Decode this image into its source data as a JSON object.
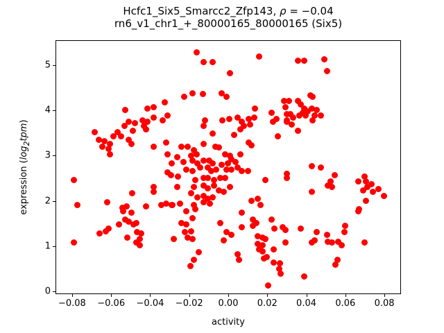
{
  "title": {
    "line1_prefix": "Hcfc1_Six5_Smarcc2_Zfp143, ",
    "line1_rho": "ρ",
    "line1_suffix": " = −0.04",
    "line2": "rn6_v1_chr1_+_80000165_80000165 (Six5)"
  },
  "axes": {
    "xlabel": "activity",
    "ylabel_prefix": "expression (",
    "ylabel_log": "log",
    "ylabel_sub": "2",
    "ylabel_tpm": "tpm",
    "ylabel_suffix": ")"
  },
  "chart_data": {
    "type": "scatter",
    "title": "Hcfc1_Six5_Smarcc2_Zfp143, ρ = −0.04",
    "subtitle": "rn6_v1_chr1_+_80000165_80000165 (Six5)",
    "xlabel": "activity",
    "ylabel": "expression (log2tpm)",
    "correlation_rho": -0.04,
    "legend": "none",
    "grid": false,
    "marker_color": "#ff0000",
    "marker_size_px": 9,
    "xlim": [
      -0.0885,
      0.0885
    ],
    "ylim": [
      -0.06,
      5.55
    ],
    "x_ticks": [
      -0.08,
      -0.06,
      -0.04,
      -0.02,
      0.0,
      0.02,
      0.04,
      0.06,
      0.08
    ],
    "x_tick_labels": [
      "−0.08",
      "−0.06",
      "−0.04",
      "−0.02",
      "0.00",
      "0.02",
      "0.04",
      "0.06",
      "0.08"
    ],
    "y_ticks": [
      0,
      1,
      2,
      3,
      4,
      5
    ],
    "y_tick_labels": [
      "0",
      "1",
      "2",
      "3",
      "4",
      "5"
    ],
    "points": [
      [
        -0.0533,
        4.02
      ],
      [
        -0.0419,
        4.05
      ],
      [
        -0.0384,
        4.09
      ],
      [
        -0.0327,
        4.2
      ],
      [
        -0.0515,
        3.77
      ],
      [
        -0.0483,
        3.74
      ],
      [
        -0.0444,
        3.8
      ],
      [
        -0.0419,
        3.76
      ],
      [
        -0.0387,
        3.85
      ],
      [
        -0.0341,
        3.79
      ],
      [
        -0.0313,
        3.9
      ],
      [
        -0.0167,
        5.29
      ],
      [
        -0.0128,
        5.09
      ],
      [
        -0.0082,
        5.08
      ],
      [
        0.0007,
        4.83
      ],
      [
        0.0156,
        5.2
      ],
      [
        -0.0231,
        4.31
      ],
      [
        -0.0185,
        4.4
      ],
      [
        -0.0135,
        4.37
      ],
      [
        -0.0036,
        4.39
      ],
      [
        -0.0011,
        4.31
      ],
      [
        0.0135,
        4.05
      ],
      [
        0.0281,
        4.23
      ],
      [
        0.0306,
        4.22
      ],
      [
        0.0298,
        3.93
      ],
      [
        0.0217,
        3.96
      ],
      [
        -0.0124,
        3.79
      ],
      [
        -0.0032,
        3.79
      ],
      [
        0.0,
        3.82
      ],
      [
        0.0046,
        3.85
      ],
      [
        0.0067,
        3.77
      ],
      [
        0.0103,
        3.82
      ],
      [
        0.0128,
        3.85
      ],
      [
        0.011,
        3.71
      ],
      [
        0.0224,
        3.77
      ],
      [
        0.0242,
        3.82
      ],
      [
        0.0298,
        3.79
      ],
      [
        0.0352,
        5.12
      ],
      [
        0.0384,
        5.11
      ],
      [
        0.049,
        5.15
      ],
      [
        0.0504,
        4.88
      ],
      [
        0.0288,
        4.09
      ],
      [
        0.0352,
        4.23
      ],
      [
        0.0369,
        4.14
      ],
      [
        0.0416,
        4.34
      ],
      [
        0.043,
        4.31
      ],
      [
        0.0387,
        4.05
      ],
      [
        0.0377,
        3.96
      ],
      [
        0.0405,
        3.99
      ],
      [
        0.0426,
        4.06
      ],
      [
        0.0448,
        4.02
      ],
      [
        0.0313,
        3.94
      ],
      [
        0.033,
        3.85
      ],
      [
        0.0359,
        3.9
      ],
      [
        0.0394,
        3.9
      ],
      [
        0.044,
        3.9
      ],
      [
        0.0472,
        3.9
      ],
      [
        0.043,
        3.79
      ],
      [
        0.0298,
        3.77
      ],
      [
        0.0323,
        3.71
      ],
      [
        -0.0686,
        3.53
      ],
      [
        -0.0668,
        3.36
      ],
      [
        -0.0639,
        3.33
      ],
      [
        -0.0593,
        3.45
      ],
      [
        -0.0572,
        3.53
      ],
      [
        -0.0554,
        3.45
      ],
      [
        -0.0536,
        3.68
      ],
      [
        -0.0494,
        3.56
      ],
      [
        -0.0512,
        3.36
      ],
      [
        -0.0501,
        3.28
      ],
      [
        -0.0437,
        3.67
      ],
      [
        -0.0423,
        3.6
      ],
      [
        -0.0611,
        3.27
      ],
      [
        -0.0618,
        3.17
      ],
      [
        -0.0611,
        3.05
      ],
      [
        -0.0647,
        3.21
      ],
      [
        -0.0387,
        3.21
      ],
      [
        -0.0323,
        3.3
      ],
      [
        -0.0316,
        3.05
      ],
      [
        -0.0295,
        2.84
      ],
      [
        -0.0313,
        2.64
      ],
      [
        -0.0796,
        2.47
      ],
      [
        -0.0384,
        2.33
      ],
      [
        -0.0384,
        2.22
      ],
      [
        -0.0497,
        2.18
      ],
      [
        -0.0778,
        1.92
      ],
      [
        -0.0625,
        1.98
      ],
      [
        -0.0547,
        1.87
      ],
      [
        -0.0526,
        1.9
      ],
      [
        -0.0423,
        1.9
      ],
      [
        -0.0348,
        1.92
      ],
      [
        -0.0323,
        1.95
      ],
      [
        -0.0295,
        1.92
      ],
      [
        -0.0131,
        3.67
      ],
      [
        -0.0082,
        3.5
      ],
      [
        0.0025,
        3.48
      ],
      [
        0.0057,
        3.6
      ],
      [
        0.0078,
        3.67
      ],
      [
        0.0103,
        3.31
      ],
      [
        0.0114,
        3.24
      ],
      [
        0.0249,
        3.45
      ],
      [
        -0.0245,
        3.21
      ],
      [
        -0.0213,
        3.22
      ],
      [
        -0.0181,
        3.14
      ],
      [
        -0.0131,
        3.27
      ],
      [
        -0.0071,
        3.21
      ],
      [
        -0.005,
        3.19
      ],
      [
        -0.0266,
        2.99
      ],
      [
        -0.0195,
        3.02
      ],
      [
        -0.0167,
        3.05
      ],
      [
        -0.0018,
        3.05
      ],
      [
        0.0004,
        3.02
      ],
      [
        0.0057,
        3.05
      ],
      [
        -0.0234,
        2.88
      ],
      [
        -0.0185,
        2.9
      ],
      [
        -0.016,
        2.85
      ],
      [
        -0.0128,
        2.9
      ],
      [
        -0.0103,
        2.9
      ],
      [
        -0.0082,
        2.84
      ],
      [
        -0.0036,
        2.81
      ],
      [
        -0.0007,
        2.85
      ],
      [
        0.0011,
        2.94
      ],
      [
        0.0032,
        2.88
      ],
      [
        -0.0217,
        2.71
      ],
      [
        -0.0185,
        2.68
      ],
      [
        -0.0146,
        2.75
      ],
      [
        -0.011,
        2.75
      ],
      [
        -0.0092,
        2.68
      ],
      [
        -0.0064,
        2.71
      ],
      [
        -0.0014,
        2.7
      ],
      [
        0.0011,
        2.71
      ],
      [
        0.0046,
        2.76
      ],
      [
        0.0067,
        2.68
      ],
      [
        0.0099,
        2.67
      ],
      [
        -0.0263,
        2.56
      ],
      [
        -0.0298,
        2.59
      ],
      [
        -0.0171,
        2.48
      ],
      [
        -0.0128,
        2.52
      ],
      [
        -0.0107,
        2.53
      ],
      [
        -0.0075,
        2.48
      ],
      [
        -0.0043,
        2.52
      ],
      [
        -0.0021,
        2.53
      ],
      [
        -0.0266,
        2.33
      ],
      [
        -0.0181,
        2.32
      ],
      [
        -0.0131,
        2.35
      ],
      [
        -0.0107,
        2.3
      ],
      [
        -0.0078,
        2.36
      ],
      [
        -0.005,
        2.24
      ],
      [
        -0.0025,
        2.22
      ],
      [
        0.0007,
        2.32
      ],
      [
        0.0188,
        2.47
      ],
      [
        -0.0192,
        2.18
      ],
      [
        -0.016,
        2.09
      ],
      [
        -0.0128,
        2.13
      ],
      [
        -0.011,
        2.07
      ],
      [
        -0.0082,
        2.09
      ],
      [
        -0.0131,
        1.98
      ],
      [
        -0.0096,
        1.95
      ],
      [
        -0.0181,
        1.92
      ],
      [
        -0.0252,
        1.95
      ],
      [
        -0.0288,
        1.92
      ],
      [
        0.0114,
        2.02
      ],
      [
        0.0149,
        2.06
      ],
      [
        0.0163,
        1.92
      ],
      [
        -0.0174,
        1.83
      ],
      [
        0.0355,
        3.56
      ],
      [
        0.0423,
        2.78
      ],
      [
        0.0472,
        2.75
      ],
      [
        0.0298,
        2.62
      ],
      [
        0.0298,
        2.53
      ],
      [
        0.0543,
        2.59
      ],
      [
        0.0522,
        2.45
      ],
      [
        0.0529,
        2.32
      ],
      [
        0.0508,
        2.35
      ],
      [
        0.0423,
        2.22
      ],
      [
        0.0664,
        2.45
      ],
      [
        0.0696,
        2.56
      ],
      [
        0.0703,
        2.44
      ],
      [
        0.0689,
        2.24
      ],
      [
        0.071,
        2.32
      ],
      [
        0.0732,
        2.38
      ],
      [
        0.0739,
        2.22
      ],
      [
        0.0767,
        2.27
      ],
      [
        0.0796,
        2.13
      ],
      [
        0.0703,
        2.02
      ],
      [
        0.0668,
        1.83
      ],
      [
        -0.0543,
        1.78
      ],
      [
        -0.0501,
        1.76
      ],
      [
        -0.0533,
        1.61
      ],
      [
        -0.0512,
        1.56
      ],
      [
        -0.049,
        1.49
      ],
      [
        -0.0476,
        1.52
      ],
      [
        -0.0565,
        1.49
      ],
      [
        -0.0615,
        1.41
      ],
      [
        -0.0632,
        1.35
      ],
      [
        -0.0664,
        1.3
      ],
      [
        -0.0519,
        1.21
      ],
      [
        -0.0472,
        1.33
      ],
      [
        -0.0451,
        1.29
      ],
      [
        -0.0455,
        1.18
      ],
      [
        -0.0455,
        1.03
      ],
      [
        -0.0476,
        1.09
      ],
      [
        -0.0796,
        1.1
      ],
      [
        -0.0217,
        1.78
      ],
      [
        -0.0185,
        1.64
      ],
      [
        -0.0245,
        1.52
      ],
      [
        -0.0217,
        1.49
      ],
      [
        -0.0192,
        1.35
      ],
      [
        -0.0224,
        1.33
      ],
      [
        -0.021,
        1.2
      ],
      [
        -0.0185,
        1.18
      ],
      [
        -0.0284,
        1.18
      ],
      [
        -0.0153,
        0.89
      ],
      [
        -0.0181,
        0.72
      ],
      [
        -0.0199,
        0.58
      ],
      [
        -0.0043,
        1.53
      ],
      [
        -0.0014,
        1.33
      ],
      [
        0.0011,
        1.27
      ],
      [
        -0.0025,
        1.15
      ],
      [
        0.0067,
        1.76
      ],
      [
        0.0067,
        1.43
      ],
      [
        0.0124,
        1.61
      ],
      [
        0.0142,
        1.52
      ],
      [
        0.0121,
        1.46
      ],
      [
        0.0046,
        0.84
      ],
      [
        0.005,
        0.72
      ],
      [
        0.022,
        1.6
      ],
      [
        0.0234,
        1.41
      ],
      [
        0.0274,
        1.44
      ],
      [
        0.0291,
        1.37
      ],
      [
        0.0149,
        1.24
      ],
      [
        0.0171,
        1.2
      ],
      [
        0.0188,
        1.18
      ],
      [
        0.0149,
        1.07
      ],
      [
        0.0171,
        1.03
      ],
      [
        0.0153,
        0.94
      ],
      [
        0.0174,
        0.9
      ],
      [
        0.0192,
        0.77
      ],
      [
        0.0178,
        0.74
      ],
      [
        0.0231,
        0.95
      ],
      [
        0.0231,
        0.66
      ],
      [
        0.0263,
        0.64
      ],
      [
        0.0259,
        0.51
      ],
      [
        0.0266,
        0.41
      ],
      [
        0.0202,
        0.14
      ],
      [
        0.0664,
        1.79
      ],
      [
        0.0369,
        1.4
      ],
      [
        0.0291,
        1.09
      ],
      [
        0.0448,
        1.33
      ],
      [
        0.044,
        1.15
      ],
      [
        0.0423,
        1.09
      ],
      [
        0.0504,
        1.26
      ],
      [
        0.0508,
        1.12
      ],
      [
        0.0529,
        1.09
      ],
      [
        0.0561,
        1.12
      ],
      [
        0.0579,
        1.04
      ],
      [
        0.0597,
        1.46
      ],
      [
        0.059,
        1.33
      ],
      [
        0.0696,
        1.1
      ],
      [
        0.0558,
        0.72
      ],
      [
        0.0547,
        0.6
      ],
      [
        0.0384,
        0.34
      ]
    ]
  }
}
